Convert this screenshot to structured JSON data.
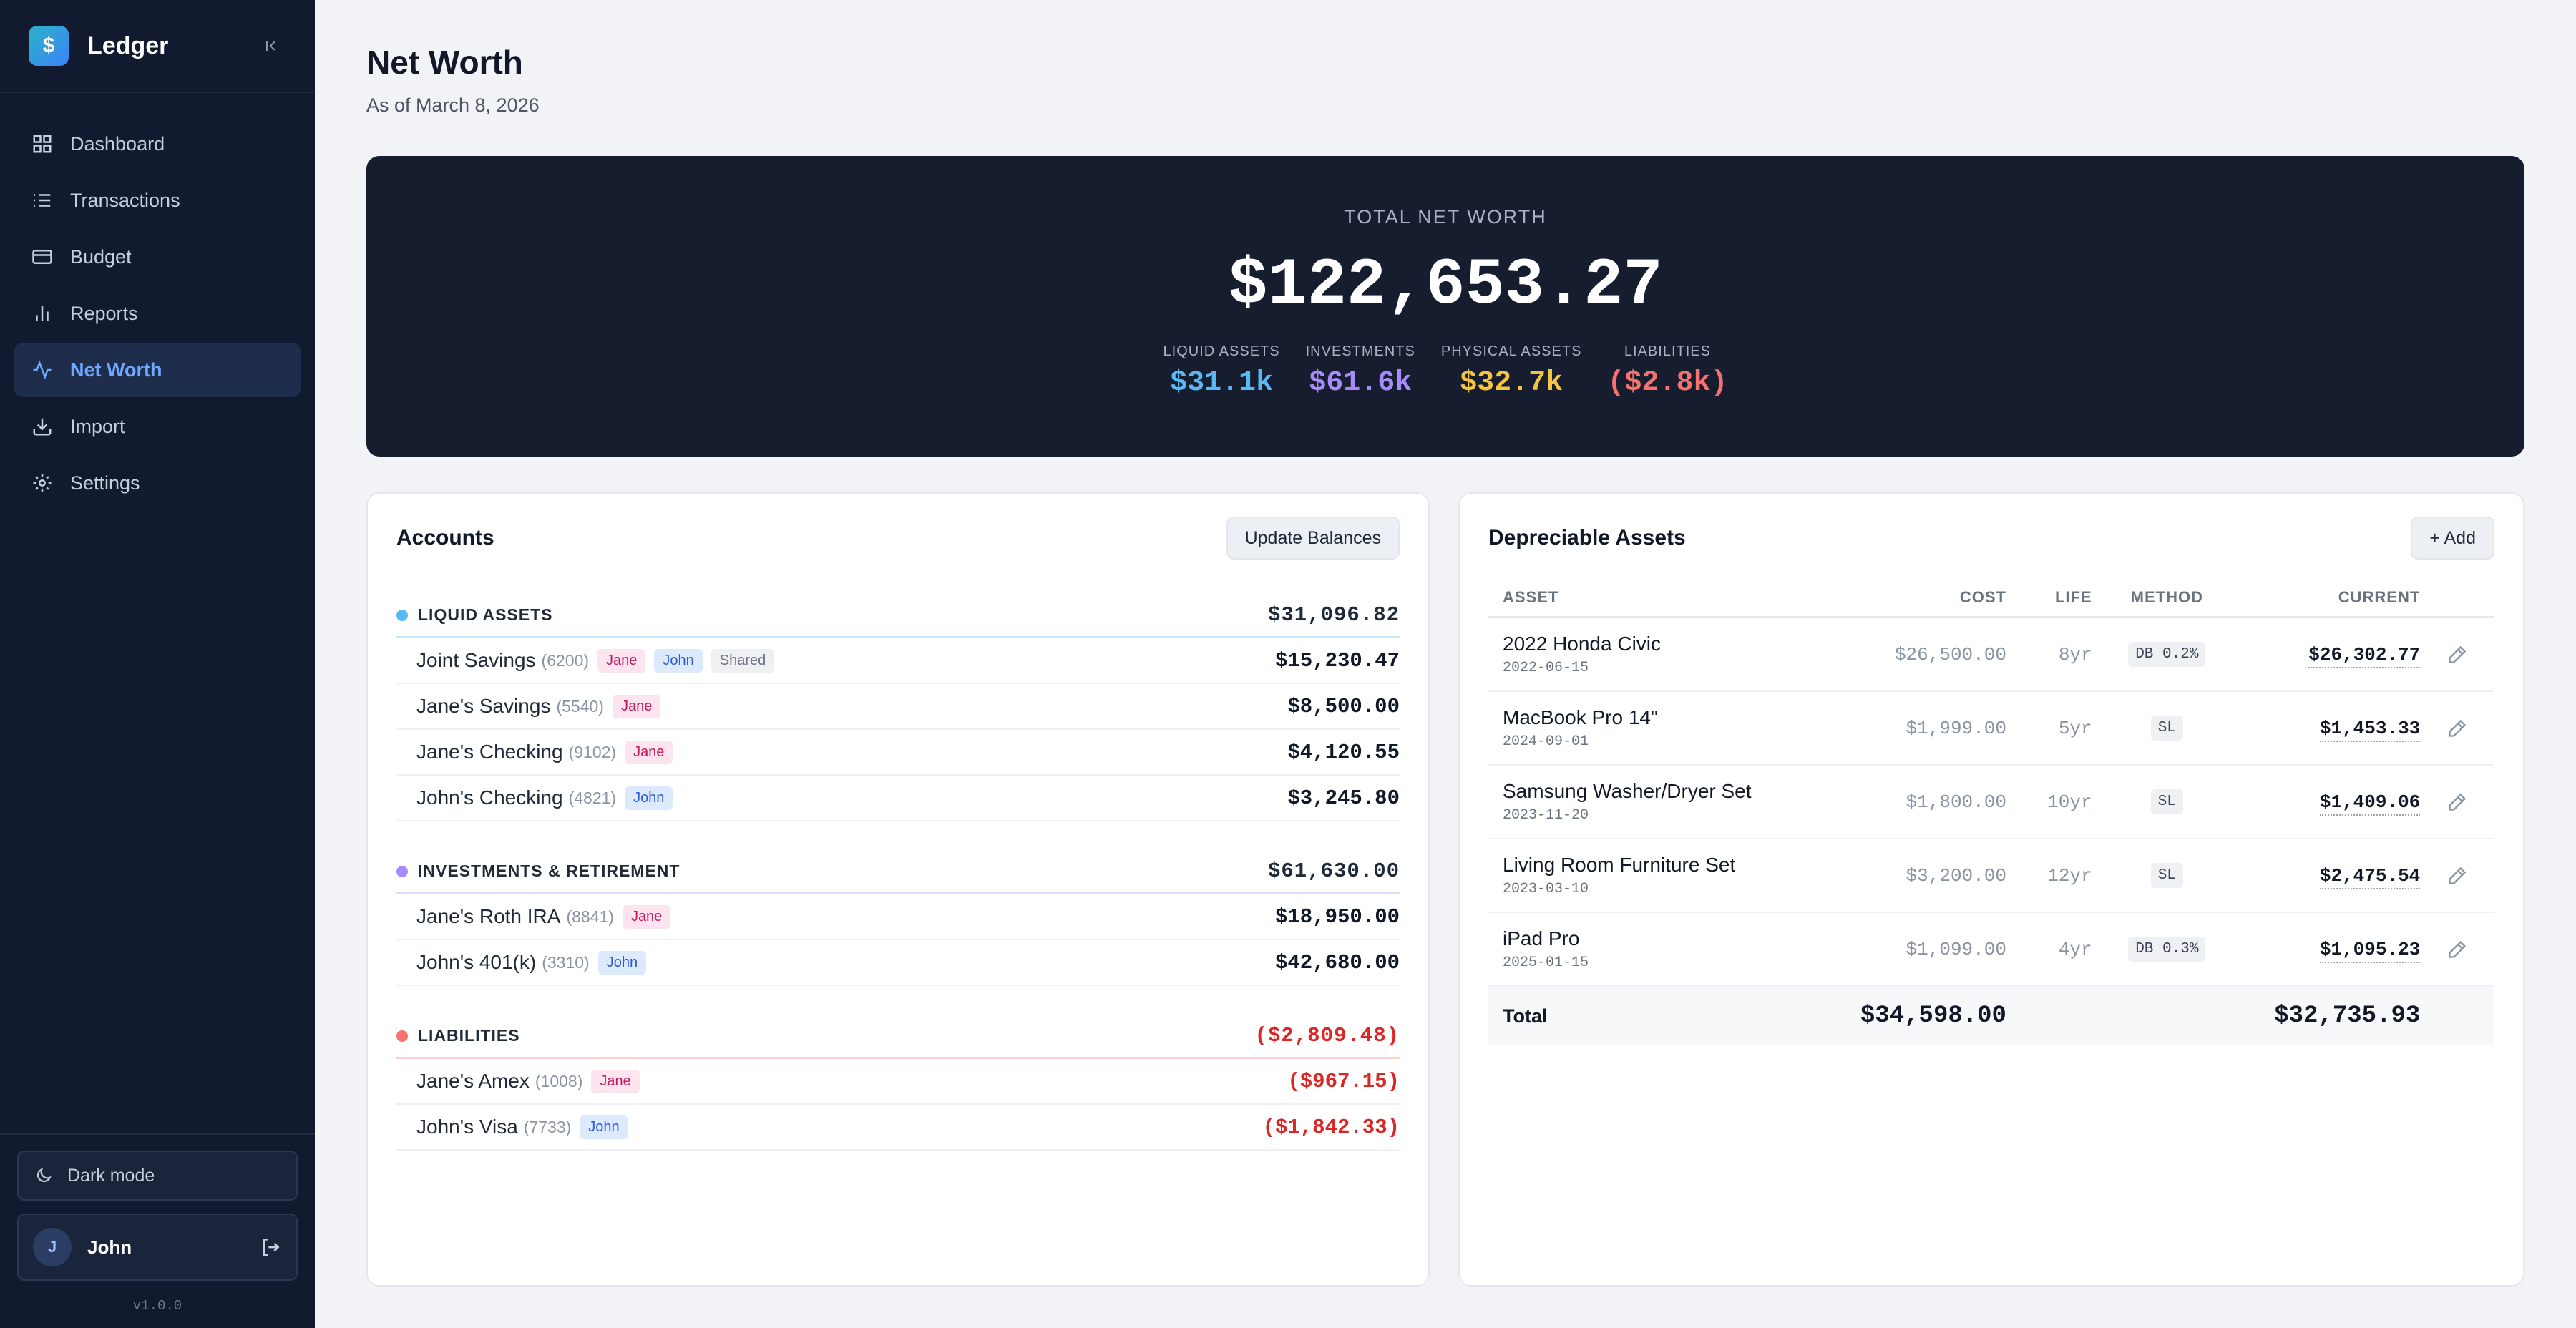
{
  "app": {
    "name": "Ledger",
    "logo_glyph": "$",
    "version": "v1.0.0"
  },
  "nav": [
    {
      "label": "Dashboard",
      "icon": "dashboard-icon",
      "active": false
    },
    {
      "label": "Transactions",
      "icon": "list-icon",
      "active": false
    },
    {
      "label": "Budget",
      "icon": "credit-card-icon",
      "active": false
    },
    {
      "label": "Reports",
      "icon": "bar-chart-icon",
      "active": false
    },
    {
      "label": "Net Worth",
      "icon": "activity-icon",
      "active": true
    },
    {
      "label": "Import",
      "icon": "download-icon",
      "active": false
    },
    {
      "label": "Settings",
      "icon": "gear-icon",
      "active": false
    }
  ],
  "sidebar_bottom": {
    "dark_mode_label": "Dark mode",
    "user_initial": "J",
    "user_name": "John"
  },
  "page": {
    "title": "Net Worth",
    "subtitle": "As of March 8, 2026"
  },
  "hero": {
    "label": "TOTAL NET WORTH",
    "value": "$122,653.27",
    "stats": [
      {
        "label": "LIQUID ASSETS",
        "value": "$31.1k",
        "color": "#5ab8f5"
      },
      {
        "label": "INVESTMENTS",
        "value": "$61.6k",
        "color": "#a78bfa"
      },
      {
        "label": "PHYSICAL ASSETS",
        "value": "$32.7k",
        "color": "#f5c542"
      },
      {
        "label": "LIABILITIES",
        "value": "($2.8k)",
        "color": "#f87171"
      }
    ]
  },
  "accounts": {
    "title": "Accounts",
    "button": "Update Balances",
    "groups": [
      {
        "name": "LIQUID ASSETS",
        "total": "$31,096.82",
        "color": "#5ab8f5",
        "negative": false,
        "rows": [
          {
            "name": "Joint Savings",
            "num": "(6200)",
            "tags": [
              "Jane",
              "John",
              "Shared"
            ],
            "amount": "$15,230.47"
          },
          {
            "name": "Jane's Savings",
            "num": "(5540)",
            "tags": [
              "Jane"
            ],
            "amount": "$8,500.00"
          },
          {
            "name": "Jane's Checking",
            "num": "(9102)",
            "tags": [
              "Jane"
            ],
            "amount": "$4,120.55"
          },
          {
            "name": "John's Checking",
            "num": "(4821)",
            "tags": [
              "John"
            ],
            "amount": "$3,245.80"
          }
        ]
      },
      {
        "name": "INVESTMENTS & RETIREMENT",
        "total": "$61,630.00",
        "color": "#a78bfa",
        "negative": false,
        "rows": [
          {
            "name": "Jane's Roth IRA",
            "num": "(8841)",
            "tags": [
              "Jane"
            ],
            "amount": "$18,950.00"
          },
          {
            "name": "John's 401(k)",
            "num": "(3310)",
            "tags": [
              "John"
            ],
            "amount": "$42,680.00"
          }
        ]
      },
      {
        "name": "LIABILITIES",
        "total": "($2,809.48)",
        "color": "#f87171",
        "negative": true,
        "rows": [
          {
            "name": "Jane's Amex",
            "num": "(1008)",
            "tags": [
              "Jane"
            ],
            "amount": "($967.15)"
          },
          {
            "name": "John's Visa",
            "num": "(7733)",
            "tags": [
              "John"
            ],
            "amount": "($1,842.33)"
          }
        ]
      }
    ]
  },
  "assets": {
    "title": "Depreciable Assets",
    "button": "+ Add",
    "headers": {
      "asset": "ASSET",
      "cost": "COST",
      "life": "LIFE",
      "method": "METHOD",
      "current": "CURRENT"
    },
    "rows": [
      {
        "name": "2022 Honda Civic",
        "date": "2022-06-15",
        "cost": "$26,500.00",
        "life": "8yr",
        "method": "DB 0.2%",
        "current": "$26,302.77"
      },
      {
        "name": "MacBook Pro 14\"",
        "date": "2024-09-01",
        "cost": "$1,999.00",
        "life": "5yr",
        "method": "SL",
        "current": "$1,453.33"
      },
      {
        "name": "Samsung Washer/Dryer Set",
        "date": "2023-11-20",
        "cost": "$1,800.00",
        "life": "10yr",
        "method": "SL",
        "current": "$1,409.06"
      },
      {
        "name": "Living Room Furniture Set",
        "date": "2023-03-10",
        "cost": "$3,200.00",
        "life": "12yr",
        "method": "SL",
        "current": "$2,475.54"
      },
      {
        "name": "iPad Pro",
        "date": "2025-01-15",
        "cost": "$1,099.00",
        "life": "4yr",
        "method": "DB 0.3%",
        "current": "$1,095.23"
      }
    ],
    "total": {
      "label": "Total",
      "cost": "$34,598.00",
      "current": "$32,735.93"
    }
  }
}
